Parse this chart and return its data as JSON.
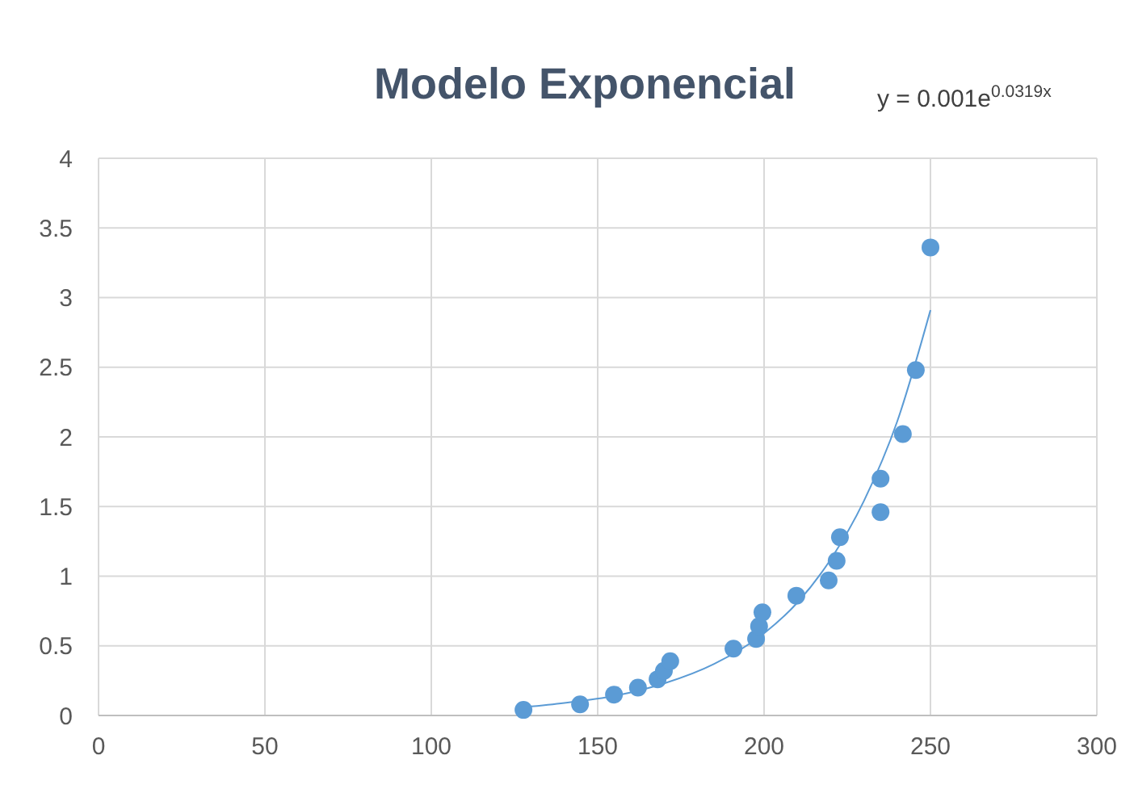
{
  "chart_data": {
    "type": "scatter",
    "title": "Modelo Exponencial",
    "annotations": [
      "y = 0.001e$^{0.0319x}$"
    ],
    "xlim": [
      0,
      300
    ],
    "xticks": [
      0,
      50,
      100,
      150,
      200,
      250,
      300
    ],
    "ylim": [
      0,
      4
    ],
    "yticks": [
      0,
      0.5,
      1,
      1.5,
      2,
      2.5,
      3,
      3.5,
      4
    ],
    "grid": true,
    "series": [
      {
        "color": "#5b9bd5",
        "marker": "circle",
        "x": [
          127.7,
          144.7,
          154.9,
          162.1,
          168,
          169.9,
          171.8,
          190.8,
          197.6,
          198.5,
          199.5,
          209.7,
          219.4,
          221.8,
          222.8,
          235,
          235,
          241.7,
          245.6,
          250
        ],
        "values": [
          0.04,
          0.08,
          0.15,
          0.2,
          0.26,
          0.32,
          0.39,
          0.48,
          0.55,
          0.64,
          0.74,
          0.86,
          0.97,
          1.11,
          1.28,
          1.46,
          1.7,
          2.02,
          2.48,
          3.36
        ]
      },
      {
        "type": "line",
        "color": "#5b9bd5",
        "marker": "none",
        "line_style": "solid",
        "x": [
          128,
          140,
          155,
          170,
          185,
          200,
          210,
          220,
          230,
          240,
          250
        ],
        "values": [
          0.06,
          0.09,
          0.14,
          0.23,
          0.37,
          0.59,
          0.81,
          1.12,
          1.54,
          2.11,
          2.91
        ]
      }
    ]
  }
}
